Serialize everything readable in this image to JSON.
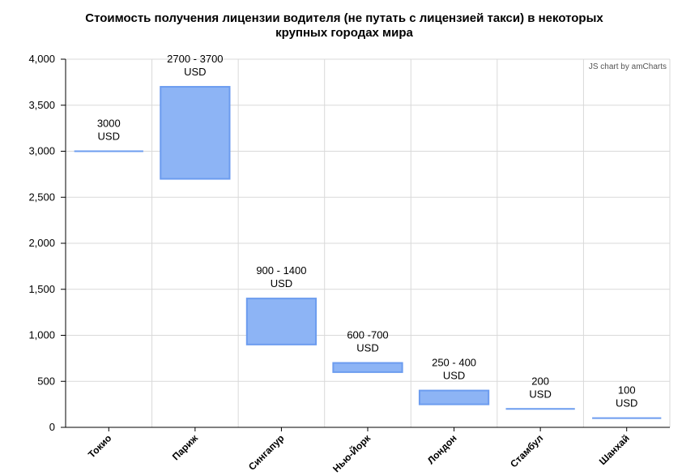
{
  "title": "Стоимость получения лицензии водителя (не путать с лицензией такси) в некоторых крупных городах мира",
  "credit": "JS chart by amCharts",
  "colors": {
    "bar_fill": "#8db4f5",
    "bar_stroke": "#6c9cef",
    "grid": "#d9d9d9",
    "axis": "#000000"
  },
  "chart_data": {
    "type": "bar",
    "subtype": "floating-range",
    "title": "Стоимость получения лицензии водителя (не путать с лицензией такси) в некоторых крупных городах мира",
    "xlabel": "",
    "ylabel": "",
    "ylim": [
      0,
      4000
    ],
    "yticks": [
      "0",
      "500",
      "1,000",
      "1,500",
      "2,000",
      "2,500",
      "3,000",
      "3,500",
      "4,000"
    ],
    "ytick_values": [
      0,
      500,
      1000,
      1500,
      2000,
      2500,
      3000,
      3500,
      4000
    ],
    "grid": true,
    "categories": [
      "Токио",
      "Париж",
      "Сингапур",
      "Нью-Йорк",
      "Лондон",
      "Стамбул",
      "Шанхай"
    ],
    "ranges": [
      [
        3000,
        3000
      ],
      [
        2700,
        3700
      ],
      [
        900,
        1400
      ],
      [
        600,
        700
      ],
      [
        250,
        400
      ],
      [
        200,
        200
      ],
      [
        100,
        100
      ]
    ],
    "labels": [
      [
        "3000",
        "USD"
      ],
      [
        "2700 - 3700",
        "USD"
      ],
      [
        "900 - 1400",
        "USD"
      ],
      [
        "600 -700",
        "USD"
      ],
      [
        "250 - 400",
        "USD"
      ],
      [
        "200",
        "USD"
      ],
      [
        "100",
        "USD"
      ]
    ]
  }
}
